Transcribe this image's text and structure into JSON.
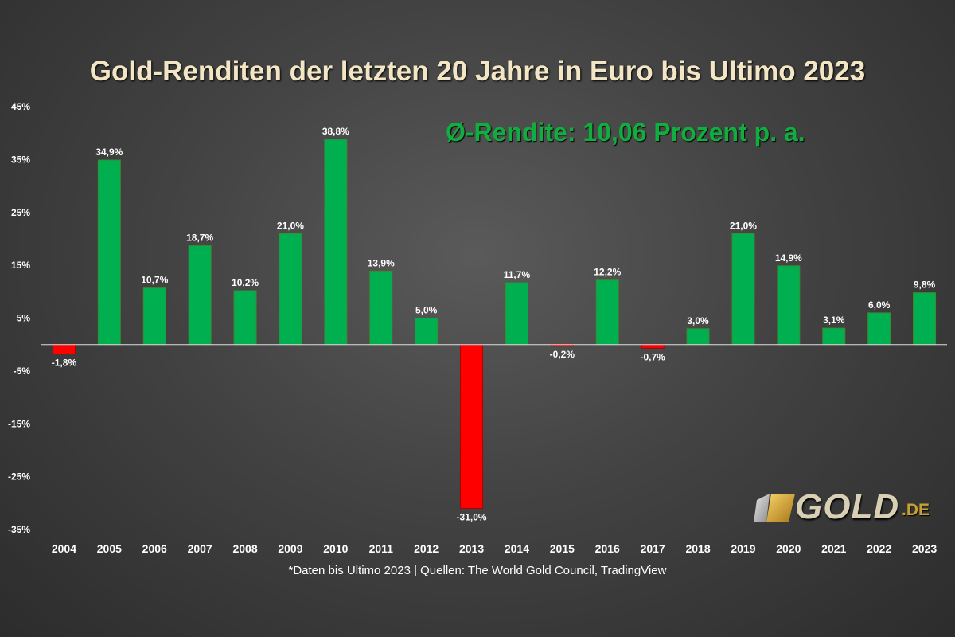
{
  "chart_data": {
    "type": "bar",
    "title": "Gold-Renditen der letzten 20 Jahre in Euro bis Ultimo 2023",
    "annotation": "Ø-Rendite:  10,06 Prozent p. a.",
    "footnote": "*Daten bis Ultimo 2023 | Quellen: The World Gold Council, TradingView",
    "categories": [
      "2004",
      "2005",
      "2006",
      "2007",
      "2008",
      "2009",
      "2010",
      "2011",
      "2012",
      "2013",
      "2014",
      "2015",
      "2016",
      "2017",
      "2018",
      "2019",
      "2020",
      "2021",
      "2022",
      "2023"
    ],
    "values": [
      -1.8,
      34.9,
      10.7,
      18.7,
      10.2,
      21.0,
      38.8,
      13.9,
      5.0,
      -31.0,
      11.7,
      -0.2,
      12.2,
      -0.7,
      3.0,
      21.0,
      14.9,
      3.1,
      6.0,
      9.8
    ],
    "data_labels": [
      "-1,8%",
      "34,9%",
      "10,7%",
      "18,7%",
      "10,2%",
      "21,0%",
      "38,8%",
      "13,9%",
      "5,0%",
      "-31,0%",
      "11,7%",
      "-0,2%",
      "12,2%",
      "-0,7%",
      "3,0%",
      "21,0%",
      "14,9%",
      "3,1%",
      "6,0%",
      "9,8%"
    ],
    "yticks": [
      45,
      35,
      25,
      15,
      5,
      -5,
      -15,
      -25,
      -35
    ],
    "ytick_labels": [
      "45%",
      "35%",
      "25%",
      "15%",
      "5%",
      "-5%",
      "-15%",
      "-25%",
      "-35%"
    ],
    "ylim": [
      -35,
      45
    ],
    "grid": false,
    "colors": {
      "positive": "#00b050",
      "negative": "#ff0000",
      "axis": "#dddddd",
      "annotation": "#0fae3f",
      "title": "#f3e6c4"
    }
  },
  "logo": {
    "word": "GOLD",
    "tld": ".DE"
  }
}
